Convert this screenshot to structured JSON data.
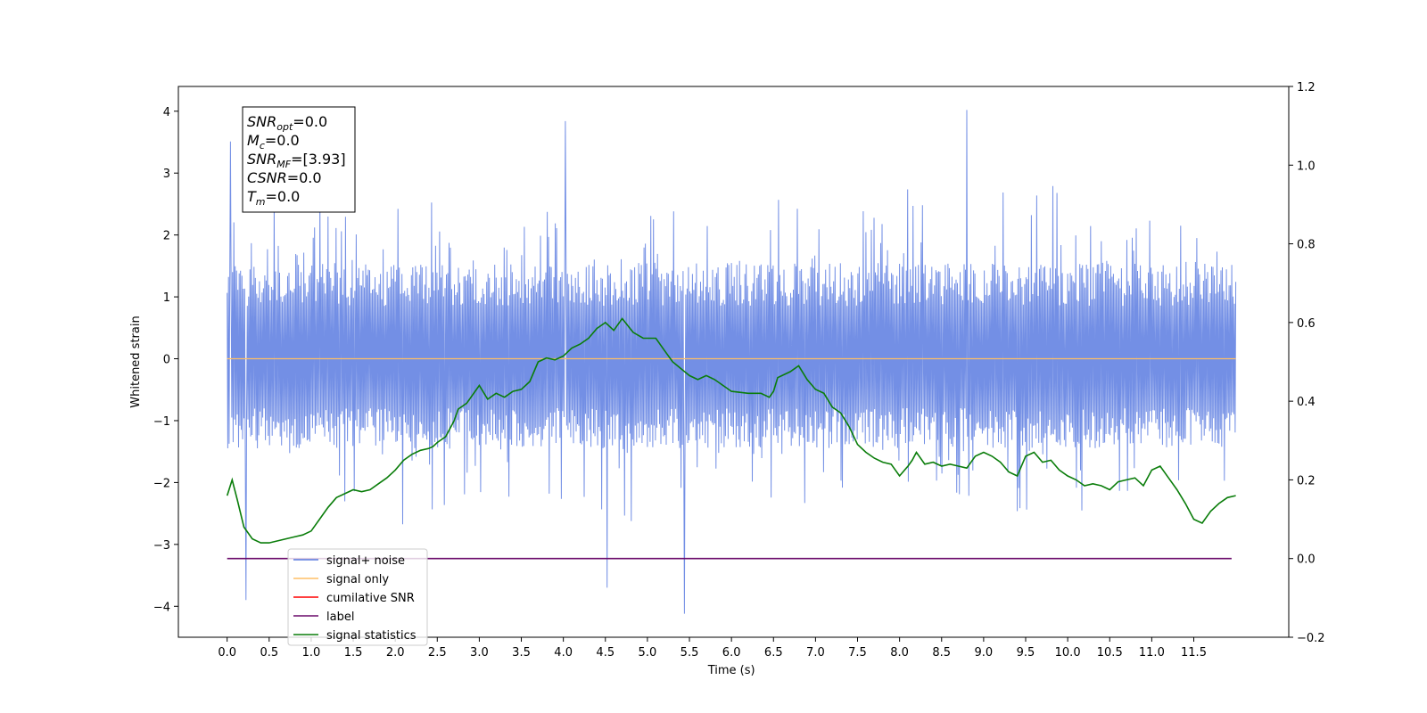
{
  "chart_data": {
    "type": "line",
    "xlabel": "Time (s)",
    "ylabel": "Whitened strain",
    "xlim": [
      -0.58,
      12.63
    ],
    "ylim": [
      -4.5,
      4.4
    ],
    "y2lim": [
      -0.2,
      1.2
    ],
    "x_ticks": [
      "0.0",
      "0.5",
      "1.0",
      "1.5",
      "2.0",
      "2.5",
      "3.0",
      "3.5",
      "4.0",
      "4.5",
      "5.0",
      "5.5",
      "6.0",
      "6.5",
      "7.0",
      "7.5",
      "8.0",
      "8.5",
      "9.0",
      "9.5",
      "10.0",
      "10.5",
      "11.0",
      "11.5"
    ],
    "y_ticks": [
      "4",
      "3",
      "2",
      "1",
      "0",
      "−1",
      "−2",
      "−3",
      "−4"
    ],
    "y2_ticks": [
      "1.2",
      "1.0",
      "0.8",
      "0.6",
      "0.4",
      "0.2",
      "0.0",
      "−0.2"
    ],
    "grid": false,
    "legend_position": "lower-left",
    "annotation": {
      "lines": [
        {
          "name": "SNR",
          "sub": "opt",
          "value": "=0.0"
        },
        {
          "name": "M",
          "sub": "c",
          "value": "=0.0"
        },
        {
          "name": "SNR",
          "sub": "MF",
          "value": "=[3.93]"
        },
        {
          "name": "CSNR",
          "sub": "",
          "value": "=0.0"
        },
        {
          "name": "T",
          "sub": "m",
          "value": "=0.0"
        }
      ]
    },
    "series": [
      {
        "name": "signal+ noise",
        "color": "#5b7be0",
        "axis": "left",
        "noise": {
          "x_start": 0.0,
          "x_end": 12.0,
          "band_low": -1.45,
          "band_high": 1.55,
          "extreme_peaks": [
            4.02,
            3.84,
            3.51
          ],
          "extreme_troughs": [
            -4.12,
            -3.9,
            -3.7
          ]
        }
      },
      {
        "name": "signal only",
        "color": "#ffbf66",
        "axis": "left",
        "x": [
          0.0,
          12.0
        ],
        "y": [
          0.0,
          0.0
        ]
      },
      {
        "name": "cumilative SNR",
        "color": "#ff0000",
        "axis": "right",
        "x": [],
        "y": []
      },
      {
        "name": "label",
        "color": "#6a0a6a",
        "axis": "right",
        "x": [
          0.0,
          11.95
        ],
        "y": [
          0.0,
          0.0
        ]
      },
      {
        "name": "signal statistics",
        "color": "#0a7d0a",
        "axis": "right",
        "x": [
          0.0,
          0.06,
          0.12,
          0.2,
          0.3,
          0.4,
          0.5,
          0.6,
          0.7,
          0.8,
          0.9,
          1.0,
          1.1,
          1.2,
          1.3,
          1.4,
          1.5,
          1.6,
          1.7,
          1.8,
          1.9,
          2.0,
          2.1,
          2.2,
          2.3,
          2.4,
          2.45,
          2.5,
          2.6,
          2.7,
          2.75,
          2.85,
          3.0,
          3.1,
          3.2,
          3.3,
          3.4,
          3.5,
          3.6,
          3.7,
          3.8,
          3.9,
          4.0,
          4.1,
          4.2,
          4.3,
          4.4,
          4.5,
          4.6,
          4.7,
          4.83,
          4.95,
          5.1,
          5.2,
          5.3,
          5.5,
          5.6,
          5.7,
          5.8,
          5.9,
          6.0,
          6.2,
          6.35,
          6.45,
          6.5,
          6.55,
          6.7,
          6.8,
          6.9,
          7.0,
          7.1,
          7.2,
          7.3,
          7.4,
          7.5,
          7.6,
          7.7,
          7.8,
          7.9,
          8.0,
          8.1,
          8.15,
          8.2,
          8.3,
          8.4,
          8.5,
          8.6,
          8.7,
          8.8,
          8.9,
          9.0,
          9.1,
          9.2,
          9.3,
          9.4,
          9.5,
          9.6,
          9.7,
          9.8,
          9.9,
          10.0,
          10.1,
          10.2,
          10.3,
          10.4,
          10.5,
          10.6,
          10.7,
          10.8,
          10.9,
          11.0,
          11.1,
          11.2,
          11.3,
          11.4,
          11.5,
          11.6,
          11.7,
          11.8,
          11.9,
          12.0
        ],
        "y": [
          0.16,
          0.2,
          0.15,
          0.08,
          0.05,
          0.04,
          0.04,
          0.045,
          0.05,
          0.055,
          0.06,
          0.07,
          0.1,
          0.13,
          0.155,
          0.165,
          0.175,
          0.17,
          0.175,
          0.19,
          0.205,
          0.225,
          0.25,
          0.265,
          0.275,
          0.28,
          0.285,
          0.295,
          0.31,
          0.35,
          0.38,
          0.395,
          0.44,
          0.405,
          0.42,
          0.41,
          0.425,
          0.43,
          0.45,
          0.5,
          0.51,
          0.505,
          0.515,
          0.535,
          0.545,
          0.56,
          0.585,
          0.6,
          0.58,
          0.61,
          0.575,
          0.56,
          0.56,
          0.53,
          0.5,
          0.465,
          0.455,
          0.465,
          0.455,
          0.44,
          0.425,
          0.42,
          0.42,
          0.41,
          0.425,
          0.46,
          0.475,
          0.49,
          0.455,
          0.43,
          0.42,
          0.385,
          0.37,
          0.335,
          0.29,
          0.27,
          0.255,
          0.245,
          0.24,
          0.21,
          0.235,
          0.25,
          0.27,
          0.24,
          0.245,
          0.235,
          0.24,
          0.235,
          0.23,
          0.26,
          0.27,
          0.26,
          0.245,
          0.22,
          0.21,
          0.26,
          0.27,
          0.245,
          0.25,
          0.225,
          0.21,
          0.2,
          0.185,
          0.19,
          0.185,
          0.175,
          0.195,
          0.2,
          0.205,
          0.185,
          0.225,
          0.235,
          0.205,
          0.175,
          0.14,
          0.1,
          0.09,
          0.12,
          0.14,
          0.155,
          0.16
        ]
      }
    ]
  }
}
